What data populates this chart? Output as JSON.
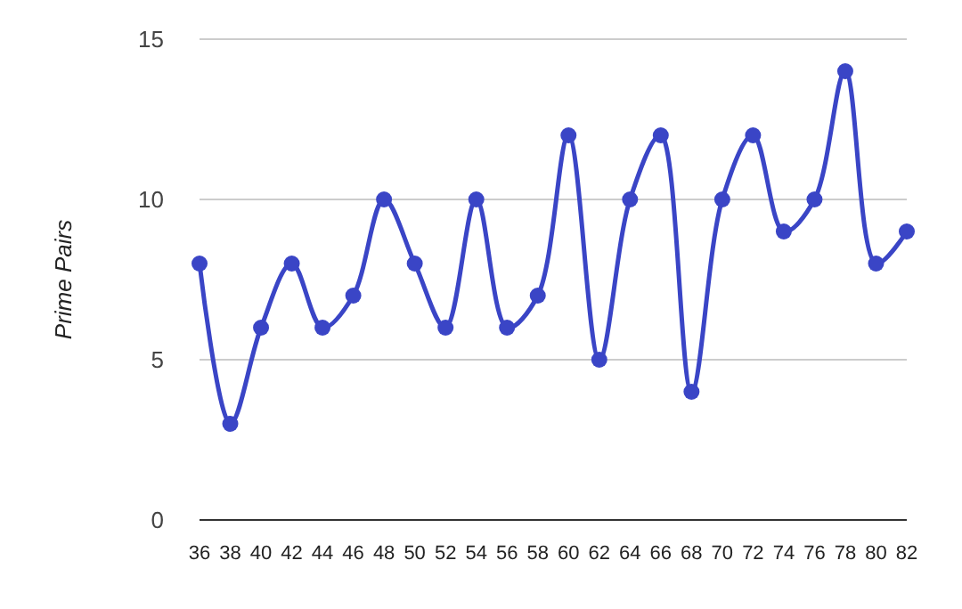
{
  "chart_data": {
    "type": "line",
    "ylabel": "Prime Pairs",
    "x": [
      36,
      38,
      40,
      42,
      44,
      46,
      48,
      50,
      52,
      54,
      56,
      58,
      60,
      62,
      64,
      66,
      68,
      70,
      72,
      74,
      76,
      78,
      80,
      82
    ],
    "series": [
      {
        "color": "#3a45c6",
        "values": [
          8,
          3,
          6,
          8,
          6,
          7,
          10,
          8,
          6,
          10,
          6,
          7,
          12,
          5,
          10,
          12,
          4,
          10,
          12,
          9,
          10,
          14,
          8,
          9
        ]
      }
    ],
    "xlim": [
      36,
      82
    ],
    "xticks": [
      36,
      38,
      40,
      42,
      44,
      46,
      48,
      50,
      52,
      54,
      56,
      58,
      60,
      62,
      64,
      66,
      68,
      70,
      72,
      74,
      76,
      78,
      80,
      82
    ],
    "ylim": [
      0,
      15
    ],
    "yticks": [
      0,
      5,
      10,
      15
    ],
    "grid": "y",
    "marker": "circle",
    "line_style": "solid"
  }
}
